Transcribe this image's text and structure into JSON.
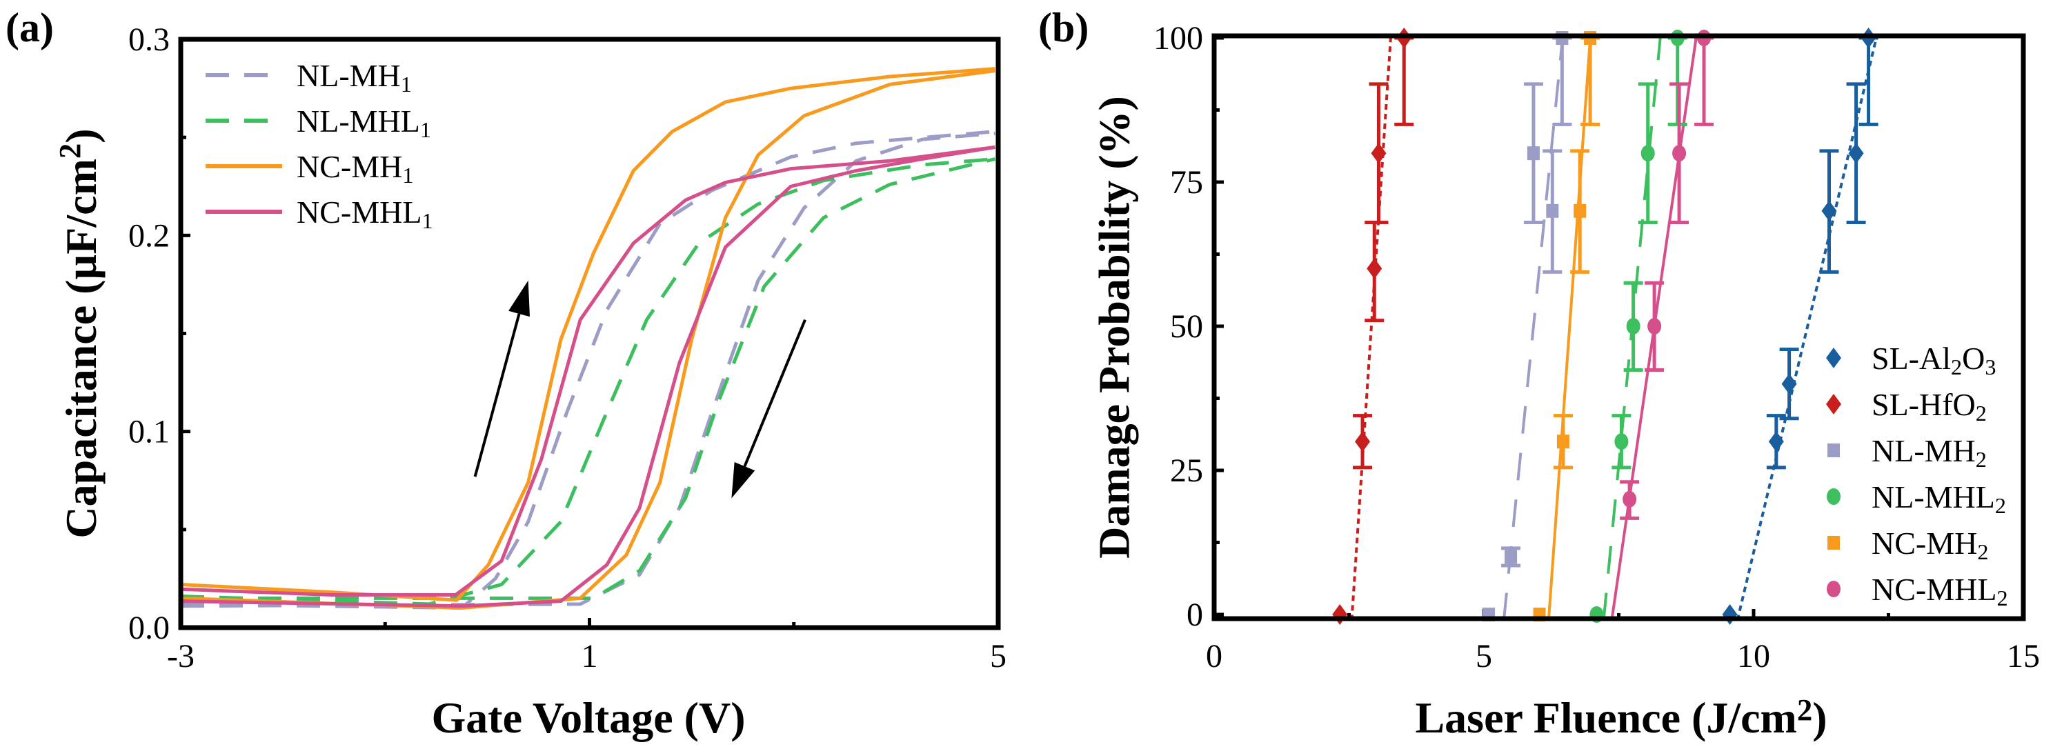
{
  "chart_data": [
    {
      "type": "line",
      "panel_label": "(a)",
      "xlabel": "Gate Voltage (V)",
      "ylabel": "Capacitance (µF/cm²)",
      "ylabel_parts": [
        [
          "Capacitance (µF/cm",
          ""
        ],
        [
          "2",
          "sup"
        ],
        [
          ")",
          ""
        ]
      ],
      "xlim": [
        -3,
        5
      ],
      "ylim": [
        0,
        0.3
      ],
      "xticks": [
        "-3",
        "1",
        "5"
      ],
      "xtick_values": [
        -3,
        1,
        5
      ],
      "xminor": [
        -1,
        3
      ],
      "yticks": [
        "0.0",
        "0.1",
        "0.2",
        "0.3"
      ],
      "ytick_values": [
        0,
        0.1,
        0.2,
        0.3
      ],
      "yminor": [
        0.05,
        0.15,
        0.25
      ],
      "legend_position": "top-left",
      "series": [
        {
          "name": "NL-MH1",
          "label_parts": [
            [
              "NL-MH",
              ""
            ],
            [
              "1",
              "sub"
            ]
          ],
          "color": "#9b9dc6",
          "dash": true,
          "forward": [
            [
              -3,
              0.012
            ],
            [
              -0.25,
              0.01
            ],
            [
              0.08,
              0.025
            ],
            [
              0.4,
              0.054
            ],
            [
              0.78,
              0.11
            ],
            [
              1.17,
              0.162
            ],
            [
              1.69,
              0.206
            ],
            [
              2.2,
              0.223
            ],
            [
              2.97,
              0.24
            ],
            [
              3.61,
              0.247
            ],
            [
              4.97,
              0.253
            ]
          ],
          "reverse": [
            [
              -3,
              0.011
            ],
            [
              0.91,
              0.012
            ],
            [
              1.49,
              0.027
            ],
            [
              1.88,
              0.061
            ],
            [
              2.2,
              0.11
            ],
            [
              2.65,
              0.177
            ],
            [
              3.1,
              0.214
            ],
            [
              3.61,
              0.238
            ],
            [
              4.26,
              0.249
            ],
            [
              4.97,
              0.252
            ]
          ]
        },
        {
          "name": "NL-MHL1",
          "label_parts": [
            [
              "NL-MHL",
              ""
            ],
            [
              "1",
              "sub"
            ]
          ],
          "color": "#3dbf5f",
          "dash": true,
          "forward": [
            [
              -3,
              0.016
            ],
            [
              -0.57,
              0.012
            ],
            [
              0.14,
              0.022
            ],
            [
              0.72,
              0.054
            ],
            [
              1.17,
              0.11
            ],
            [
              1.56,
              0.157
            ],
            [
              2.07,
              0.196
            ],
            [
              2.65,
              0.216
            ],
            [
              3.29,
              0.228
            ],
            [
              4.26,
              0.236
            ],
            [
              4.97,
              0.239
            ]
          ],
          "reverse": [
            [
              -3,
              0.015
            ],
            [
              1.04,
              0.015
            ],
            [
              1.49,
              0.029
            ],
            [
              1.94,
              0.066
            ],
            [
              2.26,
              0.115
            ],
            [
              2.71,
              0.174
            ],
            [
              3.29,
              0.209
            ],
            [
              3.94,
              0.226
            ],
            [
              4.97,
              0.239
            ]
          ]
        },
        {
          "name": "NC-MH1",
          "label_parts": [
            [
              "NC-MH",
              ""
            ],
            [
              "1",
              "sub"
            ]
          ],
          "color": "#f79a1e",
          "dash": false,
          "forward": [
            [
              -3,
              0.022
            ],
            [
              -1.5,
              0.018
            ],
            [
              -0.3,
              0.014
            ],
            [
              0.01,
              0.032
            ],
            [
              0.4,
              0.074
            ],
            [
              0.72,
              0.147
            ],
            [
              1.04,
              0.191
            ],
            [
              1.43,
              0.233
            ],
            [
              1.81,
              0.253
            ],
            [
              2.33,
              0.268
            ],
            [
              2.97,
              0.275
            ],
            [
              3.94,
              0.281
            ],
            [
              4.97,
              0.285
            ]
          ],
          "reverse": [
            [
              -3,
              0.015
            ],
            [
              -0.25,
              0.01
            ],
            [
              0.91,
              0.015
            ],
            [
              1.36,
              0.037
            ],
            [
              1.69,
              0.074
            ],
            [
              2.0,
              0.147
            ],
            [
              2.33,
              0.209
            ],
            [
              2.65,
              0.241
            ],
            [
              3.1,
              0.261
            ],
            [
              3.94,
              0.277
            ],
            [
              4.97,
              0.284
            ]
          ]
        },
        {
          "name": "NC-MHL1",
          "label_parts": [
            [
              "NC-MHL",
              ""
            ],
            [
              "1",
              "sub"
            ]
          ],
          "color": "#d5508a",
          "dash": false,
          "forward": [
            [
              -3,
              0.0196
            ],
            [
              -1.53,
              0.0167
            ],
            [
              -0.31,
              0.0167
            ],
            [
              0.14,
              0.034
            ],
            [
              0.53,
              0.086
            ],
            [
              0.91,
              0.157
            ],
            [
              1.43,
              0.196
            ],
            [
              1.94,
              0.218
            ],
            [
              2.33,
              0.227
            ],
            [
              2.97,
              0.234
            ],
            [
              3.94,
              0.238
            ],
            [
              4.97,
              0.245
            ]
          ],
          "reverse": [
            [
              -3,
              0.0135
            ],
            [
              -0.25,
              0.011
            ],
            [
              0.72,
              0.0135
            ],
            [
              1.17,
              0.032
            ],
            [
              1.49,
              0.061
            ],
            [
              1.88,
              0.135
            ],
            [
              2.33,
              0.194
            ],
            [
              2.97,
              0.225
            ],
            [
              3.61,
              0.233
            ],
            [
              4.26,
              0.239
            ],
            [
              4.97,
              0.245
            ]
          ]
        }
      ],
      "annotations": [
        {
          "type": "arrow",
          "direction": "forward sweep",
          "from": [
            -0.12,
            0.077
          ],
          "to": [
            0.4,
            0.177
          ]
        },
        {
          "type": "arrow",
          "direction": "reverse sweep",
          "from": [
            3.11,
            0.157
          ],
          "to": [
            2.39,
            0.066
          ]
        }
      ]
    },
    {
      "type": "scatter",
      "panel_label": "(b)",
      "xlabel": "Laser Fluence (J/cm²)",
      "xlabel_parts": [
        [
          "Laser Fluence (J/cm",
          ""
        ],
        [
          "2",
          "sup"
        ],
        [
          ")",
          ""
        ]
      ],
      "ylabel": "Damage Probability (%)",
      "xlim": [
        0,
        15
      ],
      "ylim": [
        0,
        100
      ],
      "xticks": [
        "0",
        "5",
        "10",
        "15"
      ],
      "xtick_values": [
        0,
        5,
        10,
        15
      ],
      "xminor": [
        2.5,
        7.5,
        12.5
      ],
      "yticks": [
        "0",
        "25",
        "50",
        "75",
        "100"
      ],
      "ytick_values": [
        0,
        25,
        50,
        75,
        100
      ],
      "yminor": [
        12.5,
        37.5,
        62.5,
        87.5
      ],
      "legend_position": "bottom-right",
      "series": [
        {
          "name": "SL-Al2O3",
          "label_parts": [
            [
              "SL-Al",
              ""
            ],
            [
              "2",
              "sub"
            ],
            [
              "O",
              ""
            ],
            [
              "3",
              "sub"
            ]
          ],
          "color": "#1a5e9e",
          "marker": "diamond",
          "fit": "dotted",
          "fit_line": [
            [
              9.7,
              -1
            ],
            [
              12.3,
              101
            ]
          ],
          "points": [
            [
              9.56,
              0
            ],
            [
              10.42,
              30
            ],
            [
              10.66,
              40
            ],
            [
              11.4,
              70
            ],
            [
              11.9,
              80
            ],
            [
              12.13,
              100
            ]
          ],
          "errors": [
            null,
            [
              25.5,
              34.5
            ],
            [
              34,
              46
            ],
            [
              59.4,
              80.4
            ],
            [
              68,
              92
            ],
            [
              85,
              100
            ]
          ]
        },
        {
          "name": "SL-HfO2",
          "label_parts": [
            [
              "SL-HfO",
              ""
            ],
            [
              "2",
              "sub"
            ]
          ],
          "color": "#c81e1e",
          "marker": "diamond",
          "fit": "dotted",
          "fit_line": [
            [
              2.55,
              -1
            ],
            [
              3.28,
              101
            ]
          ],
          "points": [
            [
              2.33,
              0
            ],
            [
              2.75,
              30
            ],
            [
              2.97,
              60
            ],
            [
              3.05,
              80
            ],
            [
              3.52,
              100
            ]
          ],
          "errors": [
            null,
            [
              25.5,
              34.5
            ],
            [
              51,
              68
            ],
            [
              68,
              92
            ],
            [
              85,
              100
            ]
          ]
        },
        {
          "name": "NL-MH2",
          "label_parts": [
            [
              "NL-MH",
              ""
            ],
            [
              "2",
              "sub"
            ]
          ],
          "color": "#9b9dc6",
          "marker": "square",
          "fit": "dashed",
          "fit_line": [
            [
              5.37,
              -1
            ],
            [
              6.47,
              101
            ]
          ],
          "points": [
            [
              5.09,
              0
            ],
            [
              5.5,
              10
            ],
            [
              6.27,
              70
            ],
            [
              5.92,
              80
            ],
            [
              6.45,
              100
            ]
          ],
          "errors": [
            null,
            [
              8.5,
              11.5
            ],
            [
              59.4,
              80.4
            ],
            [
              68,
              92
            ],
            [
              85,
              100
            ]
          ]
        },
        {
          "name": "NL-MHL2",
          "label_parts": [
            [
              "NL-MHL",
              ""
            ],
            [
              "2",
              "sub"
            ]
          ],
          "color": "#3dbf5f",
          "marker": "circle",
          "fit": "dashed",
          "fit_line": [
            [
              7.22,
              -1
            ],
            [
              8.28,
              101
            ]
          ],
          "points": [
            [
              7.09,
              0
            ],
            [
              7.55,
              30
            ],
            [
              7.77,
              50
            ],
            [
              8.04,
              80
            ],
            [
              8.59,
              100
            ]
          ],
          "errors": [
            null,
            [
              25.5,
              34.5
            ],
            [
              42.4,
              57.5
            ],
            [
              68,
              92
            ],
            [
              85,
              100
            ]
          ]
        },
        {
          "name": "NC-MH2",
          "label_parts": [
            [
              "NC-MH",
              ""
            ],
            [
              "2",
              "sub"
            ]
          ],
          "color": "#f79a1e",
          "marker": "square",
          "fit": "solid",
          "fit_line": [
            [
              6.2,
              -1
            ],
            [
              6.98,
              101
            ]
          ],
          "points": [
            [
              6.03,
              0
            ],
            [
              6.47,
              30
            ],
            [
              6.78,
              70
            ],
            [
              6.97,
              100
            ]
          ],
          "errors": [
            null,
            [
              25.5,
              34.5
            ],
            [
              59.4,
              80.4
            ],
            [
              85,
              100
            ]
          ]
        },
        {
          "name": "NC-MHL2",
          "label_parts": [
            [
              "NC-MHL",
              ""
            ],
            [
              "2",
              "sub"
            ]
          ],
          "color": "#d5508a",
          "marker": "circle",
          "fit": "solid",
          "fit_line": [
            [
              7.37,
              -1
            ],
            [
              8.95,
              101
            ]
          ],
          "points": [
            [
              7.7,
              20
            ],
            [
              8.16,
              50
            ],
            [
              8.62,
              80
            ],
            [
              9.08,
              100
            ]
          ],
          "errors": [
            [
              16.7,
              23
            ],
            [
              42.4,
              57.5
            ],
            [
              68,
              92
            ],
            [
              85,
              100
            ]
          ]
        }
      ]
    }
  ]
}
